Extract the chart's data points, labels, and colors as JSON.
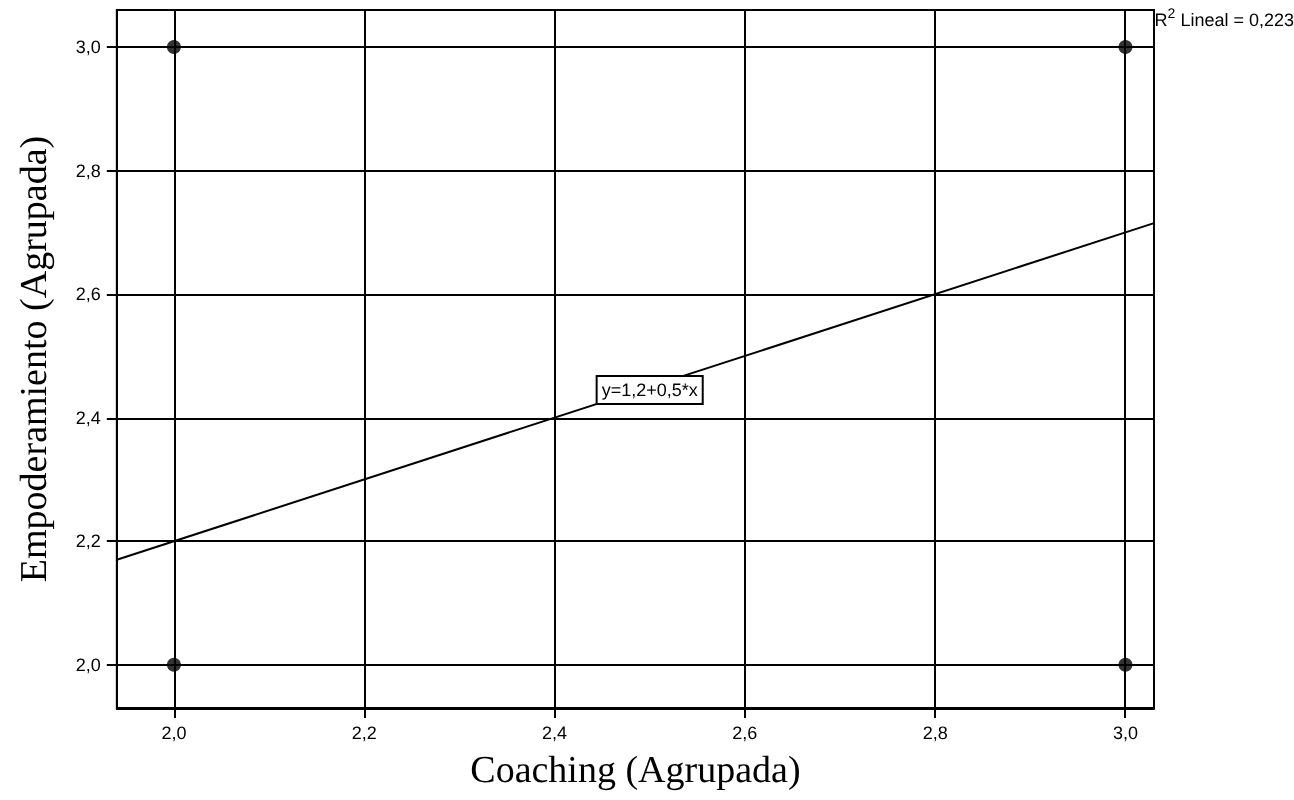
{
  "chart_data": {
    "type": "scatter",
    "xlabel": "Coaching (Agrupada)",
    "ylabel": "Empoderamiento (Agrupada)",
    "xlim": [
      1.94,
      3.03
    ],
    "ylim": [
      1.93,
      3.06
    ],
    "xticks": [
      {
        "value": 2.0,
        "label": "2,0"
      },
      {
        "value": 2.2,
        "label": "2,2"
      },
      {
        "value": 2.4,
        "label": "2,4"
      },
      {
        "value": 2.6,
        "label": "2,6"
      },
      {
        "value": 2.8,
        "label": "2,8"
      },
      {
        "value": 3.0,
        "label": "3,0"
      }
    ],
    "yticks": [
      {
        "value": 2.0,
        "label": "2,0"
      },
      {
        "value": 2.2,
        "label": "2,2"
      },
      {
        "value": 2.4,
        "label": "2,4"
      },
      {
        "value": 2.6,
        "label": "2,6"
      },
      {
        "value": 2.8,
        "label": "2,8"
      },
      {
        "value": 3.0,
        "label": "3,0"
      }
    ],
    "grid": true,
    "series": [
      {
        "color": "#000000",
        "marker": "circle",
        "x": [
          2,
          3,
          2,
          3
        ],
        "values": [
          3,
          3,
          2,
          2
        ]
      },
      {
        "type": "line",
        "color": "#000000",
        "marker": "none",
        "line_style": "solid",
        "x": [
          1.94,
          3.03
        ],
        "values": [
          2.17,
          2.715
        ]
      }
    ],
    "annotations": [
      "R$^{2}$ Lineal = 0,223",
      {
        "text": "y=1,2+0,5*x",
        "x": 2.5,
        "y": 2.445
      }
    ]
  }
}
